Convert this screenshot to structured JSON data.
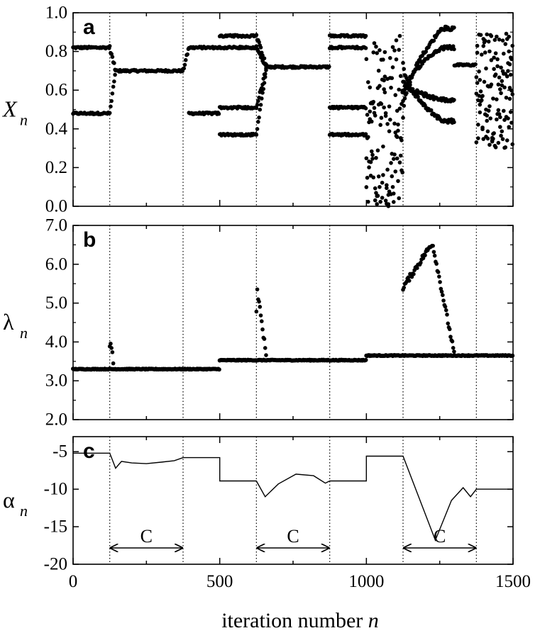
{
  "xlabel": "iteration number",
  "xlabel_var": "n",
  "x_ticks": [
    "0",
    "500",
    "1000",
    "1500"
  ],
  "chart_data": [
    {
      "type": "scatter",
      "panel": "a",
      "ylabel": "X",
      "ylabel_sub": "n",
      "xlim": [
        0,
        1500
      ],
      "ylim": [
        0.0,
        1.0
      ],
      "y_ticks": [
        "0.0",
        "0.2",
        "0.4",
        "0.6",
        "0.8",
        "1.0"
      ],
      "y_tick_values": [
        0.0,
        0.2,
        0.4,
        0.6,
        0.8,
        1.0
      ],
      "regime_boundaries": [
        125,
        375,
        625,
        875,
        1125,
        1375
      ],
      "segments": [
        {
          "x": [
            0,
            125
          ],
          "kind": "cycle",
          "levels": [
            0.82,
            0.48
          ]
        },
        {
          "x": [
            125,
            145
          ],
          "kind": "transient",
          "from": [
            0.82,
            0.48
          ],
          "to": [
            0.7
          ]
        },
        {
          "x": [
            145,
            375
          ],
          "kind": "cycle",
          "levels": [
            0.7
          ]
        },
        {
          "x": [
            375,
            395
          ],
          "kind": "transient",
          "from": [
            0.7
          ],
          "to": [
            0.82,
            0.48
          ]
        },
        {
          "x": [
            395,
            500
          ],
          "kind": "cycle",
          "levels": [
            0.82,
            0.48
          ]
        },
        {
          "x": [
            500,
            625
          ],
          "kind": "cycle",
          "levels": [
            0.88,
            0.82,
            0.51,
            0.37
          ]
        },
        {
          "x": [
            625,
            660
          ],
          "kind": "transient",
          "from": [
            0.88,
            0.82,
            0.51,
            0.37
          ],
          "to": [
            0.72
          ]
        },
        {
          "x": [
            660,
            875
          ],
          "kind": "cycle",
          "levels": [
            0.72
          ]
        },
        {
          "x": [
            875,
            1000
          ],
          "kind": "cycle",
          "levels": [
            0.88,
            0.82,
            0.51,
            0.37
          ]
        },
        {
          "x": [
            1000,
            1125
          ],
          "kind": "chaotic",
          "range": [
            0.0,
            0.9
          ]
        },
        {
          "x": [
            1125,
            1300
          ],
          "kind": "period-doubling",
          "levels": [
            0.92,
            0.82,
            0.55,
            0.44
          ]
        },
        {
          "x": [
            1300,
            1375
          ],
          "kind": "cycle",
          "levels": [
            0.73
          ]
        },
        {
          "x": [
            1375,
            1500
          ],
          "kind": "chaotic",
          "range": [
            0.3,
            0.91
          ]
        }
      ]
    },
    {
      "type": "scatter",
      "panel": "b",
      "ylabel": "λ",
      "ylabel_sub": "n",
      "xlim": [
        0,
        1500
      ],
      "ylim": [
        2.0,
        7.0
      ],
      "y_ticks": [
        "2.0",
        "3.0",
        "4.0",
        "5.0",
        "6.0",
        "7.0"
      ],
      "y_tick_values": [
        2.0,
        3.0,
        4.0,
        5.0,
        6.0,
        7.0
      ],
      "regime_boundaries": [
        125,
        375,
        625,
        875,
        1125,
        1375
      ],
      "baseline": [
        {
          "x": [
            0,
            500
          ],
          "y": 3.3
        },
        {
          "x": [
            500,
            1000
          ],
          "y": 3.53
        },
        {
          "x": [
            1000,
            1500
          ],
          "y": 3.65
        }
      ],
      "excursions": [
        {
          "x": [
            125,
            140
          ],
          "peak": 4.2,
          "settle": 3.33
        },
        {
          "x": [
            625,
            660
          ],
          "peak": 5.5,
          "settle": 3.57
        },
        {
          "x": [
            1125,
            1300
          ],
          "peak": 6.55,
          "peak_x": 1225,
          "settle": 3.68
        }
      ]
    },
    {
      "type": "line",
      "panel": "c",
      "ylabel": "α",
      "ylabel_sub": "n",
      "xlim": [
        0,
        1500
      ],
      "ylim": [
        -20,
        -3
      ],
      "y_ticks": [
        "-5",
        "-10",
        "-15",
        "-20"
      ],
      "y_tick_values": [
        -5,
        -10,
        -15,
        -20
      ],
      "regime_boundaries": [
        125,
        375,
        625,
        875,
        1125,
        1375
      ],
      "x": [
        0,
        125,
        145,
        165,
        200,
        250,
        300,
        345,
        375,
        500,
        500,
        625,
        655,
        700,
        760,
        820,
        860,
        875,
        1000,
        1000,
        1125,
        1235,
        1290,
        1330,
        1355,
        1375,
        1500
      ],
      "y": [
        -5.2,
        -5.2,
        -7.2,
        -6.3,
        -6.5,
        -6.6,
        -6.4,
        -6.2,
        -5.8,
        -5.8,
        -8.9,
        -8.9,
        -11.0,
        -9.3,
        -8.0,
        -8.2,
        -9.2,
        -8.9,
        -8.9,
        -5.6,
        -5.6,
        -16.8,
        -11.5,
        -9.8,
        -11.0,
        -10.0,
        -10.0
      ],
      "c_label": "C",
      "c_arrows": [
        {
          "from": 125,
          "to": 375
        },
        {
          "from": 625,
          "to": 875
        },
        {
          "from": 1125,
          "to": 1375
        }
      ]
    }
  ]
}
